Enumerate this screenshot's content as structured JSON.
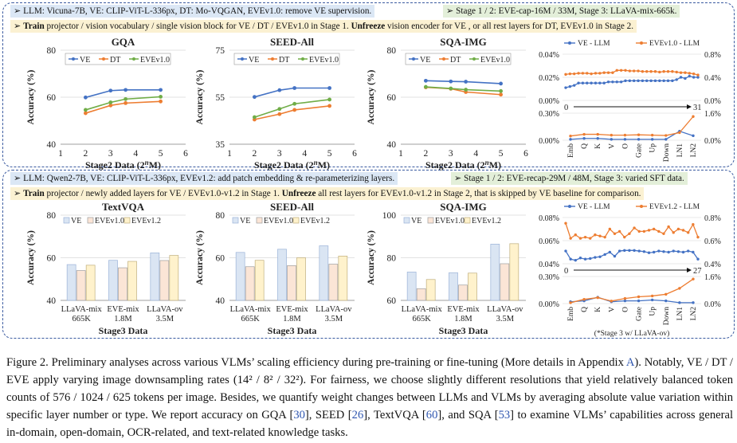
{
  "top": {
    "header1": "➢ LLM: Vicuna-7B,   VE: CLIP-ViT-L-336px,   DT: Mo-VQGAN,   EVEv1.0: remove VE supervision.",
    "header1b": "➢ Stage 1 / 2: EVE-cap-16M / 33M,   Stage 3: LLaVA-mix-665k.",
    "header2_arrow": "➢ ",
    "header2_train": "Train",
    "header2_mid": " projector / vision vocabulary / single vision block for VE / DT / EVEv1.0 in Stage 1. ",
    "header2_unfreeze": "Unfreeze",
    "header2_end": " vision encoder for VE , or all rest layers for DT, EVEv1.0 in Stage 2.",
    "xlabel": "Stage2 Data (2",
    "xlabel_sup": "n",
    "xlabel_end": "M)",
    "ylabel": "Accuracy (%)",
    "legend": [
      "VE",
      "DT",
      "EVEv1.0"
    ],
    "weight_legend": [
      "VE - LLM",
      "EVEv1.0 - LLM"
    ],
    "range_left": "0",
    "range_right": "31"
  },
  "bottom": {
    "header1": "➢ LLM: Qwen2-7B,  VE: CLIP-ViT-L-336px,  EVEv1.2: add patch embedding & re-parameterizing layers.",
    "header1b": "➢ Stage 1 / 2: EVE-recap-29M / 48M,   Stage 3: varied SFT data.",
    "header2_arrow": "➢ ",
    "header2_train": "Train",
    "header2_mid": " projector / newly added layers for VE / EVEv1.0-v1.2 in Stage 1. ",
    "header2_unfreeze": "Unfreeze",
    "header2_end": " all rest layers for EVEv1.0-v1.2 in Stage 2, that is skipped by VE baseline for comparison.",
    "xlabel": "Stage3 Data",
    "ylabel": "Accuracy (%)",
    "legend": [
      "VE",
      "EVEv1.0",
      "EVEv1.2"
    ],
    "weight_legend": [
      "VE - LLM",
      "EVEv1.2 - LLM"
    ],
    "range_left": "0",
    "range_right": "27",
    "footnote": "(*Stage 3 w/ LLaVA-ov)"
  },
  "colors": {
    "ve": "#4472c4",
    "dt": "#ed7d31",
    "eve": "#70ad47",
    "ve_bar": "#dae5f3",
    "eve10_bar": "#fbe5d6",
    "eve12_bar": "#fff2cc"
  },
  "chart_data": [
    {
      "type": "line",
      "title": "GQA",
      "x": [
        2,
        3,
        3.6,
        5
      ],
      "xlim": [
        1,
        6
      ],
      "ylim": [
        40,
        80
      ],
      "yticks": [
        40,
        60,
        80
      ],
      "xticks": [
        1,
        2,
        3,
        4,
        5,
        6
      ],
      "series": [
        {
          "name": "VE",
          "values": [
            59.9,
            62.8,
            63.1,
            63.1
          ]
        },
        {
          "name": "DT",
          "values": [
            53.2,
            56.5,
            57.5,
            58.2
          ]
        },
        {
          "name": "EVEv1.0",
          "values": [
            54.6,
            57.8,
            59.2,
            60.2
          ]
        }
      ]
    },
    {
      "type": "line",
      "title": "SEED-All",
      "x": [
        2,
        3,
        3.6,
        5
      ],
      "xlim": [
        1,
        6
      ],
      "ylim": [
        35,
        75
      ],
      "yticks": [
        35,
        55,
        75
      ],
      "xticks": [
        1,
        2,
        3,
        4,
        5,
        6
      ],
      "series": [
        {
          "name": "VE",
          "values": [
            55.1,
            58.0,
            58.9,
            58.9
          ]
        },
        {
          "name": "DT",
          "values": [
            45.5,
            47.8,
            49.6,
            51.3
          ]
        },
        {
          "name": "EVEv1.0",
          "values": [
            46.5,
            50.0,
            52.2,
            54.0
          ]
        }
      ]
    },
    {
      "type": "line",
      "title": "SQA-IMG",
      "x": [
        2,
        3,
        3.6,
        5
      ],
      "xlim": [
        1,
        6
      ],
      "ylim": [
        40,
        80
      ],
      "yticks": [
        40,
        60,
        80
      ],
      "xticks": [
        1,
        2,
        3,
        4,
        5,
        6
      ],
      "series": [
        {
          "name": "VE",
          "values": [
            67.0,
            66.7,
            66.6,
            65.8
          ]
        },
        {
          "name": "DT",
          "values": [
            64.2,
            63.6,
            62.2,
            61.1
          ]
        },
        {
          "name": "EVEv1.0",
          "values": [
            64.4,
            63.7,
            63.2,
            62.6
          ]
        }
      ]
    },
    {
      "type": "line",
      "title": "",
      "x_range": [
        0,
        31
      ],
      "y_left_ticks": [
        "0.00%",
        "0.02%",
        "0.04%"
      ],
      "y_right_ticks": [
        "0.0%",
        "0.4%",
        "0.8%"
      ],
      "series": [
        {
          "name": "VE - LLM",
          "values": [
            0.011,
            0.012,
            0.013,
            0.015,
            0.015,
            0.015,
            0.015,
            0.015,
            0.015,
            0.015,
            0.016,
            0.016,
            0.016,
            0.016,
            0.017,
            0.017,
            0.017,
            0.017,
            0.017,
            0.017,
            0.017,
            0.017,
            0.017,
            0.017,
            0.017,
            0.017,
            0.018,
            0.02,
            0.019,
            0.021,
            0.02,
            0.02
          ]
        },
        {
          "name": "EVEv1.0 - LLM",
          "values": [
            0.45,
            0.46,
            0.46,
            0.47,
            0.47,
            0.47,
            0.46,
            0.47,
            0.47,
            0.48,
            0.48,
            0.48,
            0.52,
            0.52,
            0.52,
            0.51,
            0.51,
            0.51,
            0.5,
            0.5,
            0.5,
            0.5,
            0.49,
            0.5,
            0.5,
            0.5,
            0.49,
            0.48,
            0.48,
            0.47,
            0.46,
            0.44
          ]
        }
      ]
    },
    {
      "type": "line",
      "title": "",
      "categories": [
        "Emb",
        "Q",
        "K",
        "V",
        "O",
        "Gate",
        "Up",
        "Down",
        "LN1",
        "LN2"
      ],
      "y_left_ticks": [
        "0.00%",
        "0.30%"
      ],
      "y_right_ticks": [
        "0.0%",
        "1.6%"
      ],
      "series": [
        {
          "name": "VE - LLM",
          "values": [
            0.01,
            0.02,
            0.02,
            0.01,
            0.01,
            0.01,
            0.01,
            0.01,
            0.1,
            0.05
          ]
        },
        {
          "name": "EVEv1.0 - LLM",
          "values": [
            0.25,
            0.35,
            0.35,
            0.3,
            0.3,
            0.32,
            0.3,
            0.28,
            0.45,
            1.4
          ]
        }
      ]
    },
    {
      "type": "bar",
      "title": "TextVQA",
      "categories": [
        "LLaVA-mix 665K",
        "EVE-mix 1.8M",
        "LLaVA-ov 3.5M"
      ],
      "ylim": [
        40,
        80
      ],
      "yticks": [
        40,
        60,
        80
      ],
      "series": [
        {
          "name": "VE",
          "values": [
            56.8,
            58.8,
            62.3
          ]
        },
        {
          "name": "EVEv1.0",
          "values": [
            54.0,
            55.3,
            58.7
          ]
        },
        {
          "name": "EVEv1.2",
          "values": [
            56.5,
            58.3,
            61.1
          ]
        }
      ]
    },
    {
      "type": "bar",
      "title": "SEED-All",
      "categories": [
        "LLaVA-mix 665K",
        "EVE-mix 1.8M",
        "LLaVA-ov 3.5M"
      ],
      "ylim": [
        40,
        80
      ],
      "yticks": [
        40,
        60,
        80
      ],
      "series": [
        {
          "name": "VE",
          "values": [
            62.5,
            64.0,
            65.6
          ]
        },
        {
          "name": "EVEv1.0",
          "values": [
            55.8,
            56.3,
            57.0
          ]
        },
        {
          "name": "EVEv1.2",
          "values": [
            58.8,
            60.0,
            60.8
          ]
        }
      ]
    },
    {
      "type": "bar",
      "title": "SQA-IMG",
      "categories": [
        "LLaVA-mix 665K",
        "EVE-mix 1.8M",
        "LLaVA-ov 3.5M"
      ],
      "ylim": [
        60,
        100
      ],
      "yticks": [
        60,
        80,
        100
      ],
      "series": [
        {
          "name": "VE",
          "values": [
            73.3,
            73.0,
            86.4
          ]
        },
        {
          "name": "EVEv1.0",
          "values": [
            65.5,
            67.2,
            77.2
          ]
        },
        {
          "name": "EVEv1.2",
          "values": [
            69.8,
            72.8,
            86.6
          ]
        }
      ]
    },
    {
      "type": "line",
      "title": "",
      "x_range": [
        0,
        27
      ],
      "y_left_ticks": [
        "0.04%",
        "0.06%",
        "0.08%"
      ],
      "y_right_ticks": [
        "0.4%",
        "0.6%",
        "0.8%"
      ],
      "series": [
        {
          "name": "VE - LLM",
          "values": [
            0.051,
            0.044,
            0.043,
            0.045,
            0.044,
            0.0445,
            0.0455,
            0.046,
            0.048,
            0.05,
            0.0465,
            0.051,
            0.0515,
            0.0515,
            0.0515,
            0.051,
            0.0505,
            0.0495,
            0.05,
            0.051,
            0.0505,
            0.05,
            0.051,
            0.0505,
            0.05,
            0.051,
            0.05,
            0.044
          ]
        },
        {
          "name": "EVEv1.2 - LLM",
          "values": [
            0.75,
            0.62,
            0.65,
            0.62,
            0.63,
            0.62,
            0.65,
            0.64,
            0.63,
            0.7,
            0.66,
            0.68,
            0.63,
            0.66,
            0.71,
            0.68,
            0.68,
            0.69,
            0.7,
            0.68,
            0.66,
            0.72,
            0.67,
            0.7,
            0.69,
            0.67,
            0.74,
            0.63
          ]
        }
      ]
    },
    {
      "type": "line",
      "title": "",
      "categories": [
        "Emb",
        "Q",
        "K",
        "V",
        "O",
        "Gate",
        "Up",
        "Down",
        "LN1",
        "LN2"
      ],
      "y_left_ticks": [
        "0.00%",
        "0.30%"
      ],
      "y_right_ticks": [
        "0.0%",
        "1.6%"
      ],
      "series": [
        {
          "name": "VE - LLM",
          "values": [
            0.02,
            0.03,
            0.07,
            0.02,
            0.03,
            0.03,
            0.04,
            0.03,
            0.01,
            0.01
          ]
        },
        {
          "name": "EVEv1.2 - LLM",
          "values": [
            0.05,
            0.25,
            0.35,
            0.15,
            0.3,
            0.4,
            0.45,
            0.55,
            0.9,
            1.45
          ]
        }
      ]
    }
  ],
  "caption": {
    "l1a": "Figure 2. Preliminary analyses across various VLMs’ scaling efficiency during pre-training or fine-tuning (More details in Appendix ",
    "l1ref": "A",
    "l1b": ").",
    "l2": "Notably, VE / DT / EVE apply varying image downsampling rates (14² / 8² / 32²). For fairness, we choose slightly different resolutions that yield relatively balanced token counts of 576 / 1024 / 625 tokens per image. Besides, we quantify weight changes between LLMs and VLMs by averaging absolute value variation within specific layer number or type. We report accuracy on GQA [",
    "r30": "30",
    "l3": "], SEED [",
    "r26": "26",
    "l4": "], TextVQA [",
    "r60": "60",
    "l5": "], and SQA [",
    "r53": "53",
    "l6": "] to examine VLMs’ capabilities across general in-domain, open-domain, OCR-related, and text-related knowledge tasks."
  }
}
